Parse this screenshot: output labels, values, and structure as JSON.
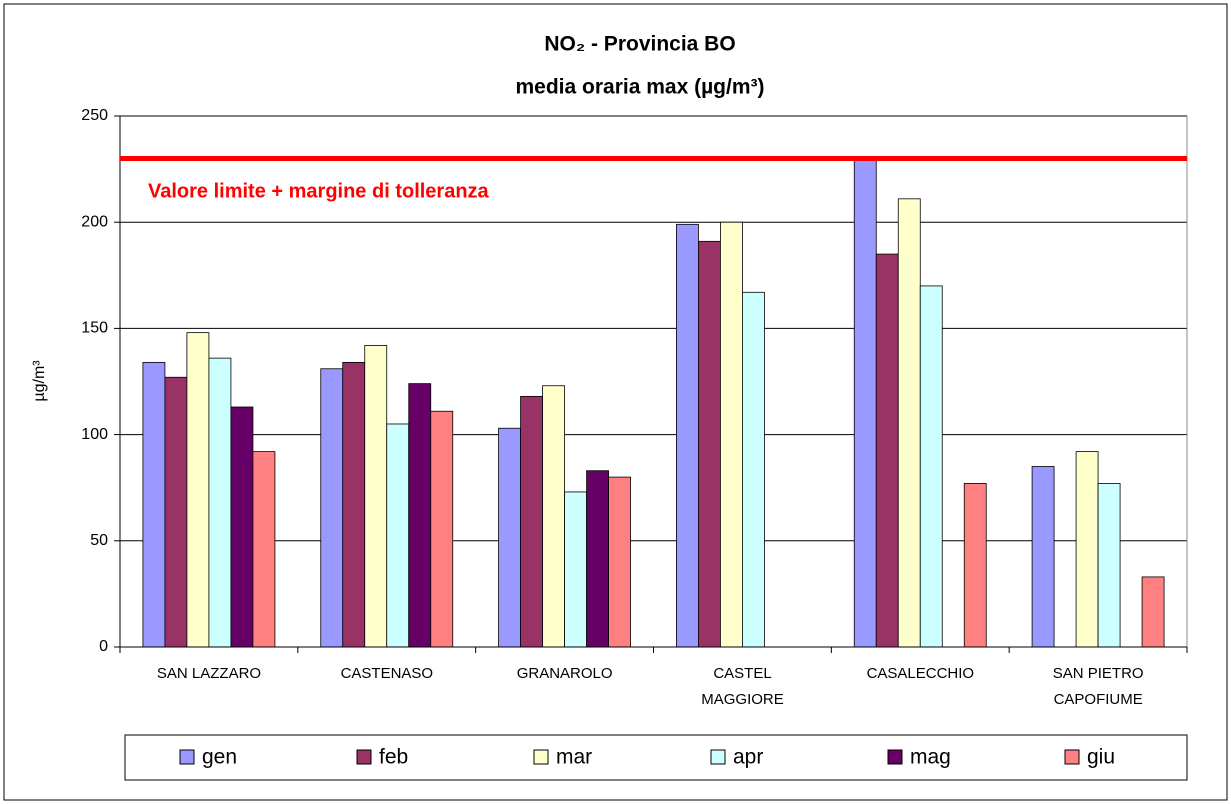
{
  "chart_data": {
    "type": "bar",
    "title": "NO₂ - Provincia BO",
    "subtitle": "media oraria max (µg/m³)",
    "y_label": "µg/m³",
    "categories": [
      "SAN LAZZARO",
      "CASTENASO",
      "GRANAROLO",
      "CASTEL\nMAGGIORE",
      "CASALECCHIO",
      "SAN PIETRO\nCAPOFIUME"
    ],
    "series": [
      {
        "name": "gen",
        "color": "#9999ff",
        "values": [
          134,
          131,
          103,
          199,
          229,
          85
        ]
      },
      {
        "name": "feb",
        "color": "#993366",
        "values": [
          127,
          134,
          118,
          191,
          185,
          null
        ]
      },
      {
        "name": "mar",
        "color": "#ffffcc",
        "values": [
          148,
          142,
          123,
          200,
          211,
          92
        ]
      },
      {
        "name": "apr",
        "color": "#ccffff",
        "values": [
          136,
          105,
          73,
          167,
          170,
          77
        ]
      },
      {
        "name": "mag",
        "color": "#660066",
        "values": [
          113,
          124,
          83,
          null,
          null,
          null
        ]
      },
      {
        "name": "giu",
        "color": "#ff8080",
        "values": [
          92,
          111,
          80,
          null,
          77,
          33
        ]
      }
    ],
    "threshold": {
      "value": 230,
      "label": "Valore limite + margine di tolleranza",
      "color": "#ff0000"
    },
    "ylim": [
      0,
      250
    ],
    "yticks": [
      0,
      50,
      100,
      150,
      200,
      250
    ],
    "grid": true,
    "legend": "bottom"
  }
}
